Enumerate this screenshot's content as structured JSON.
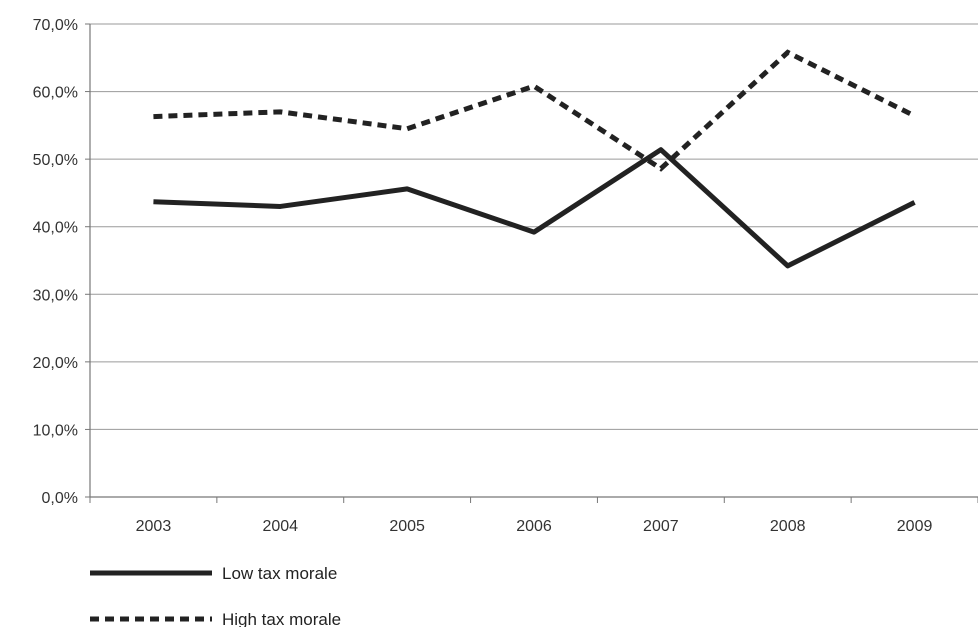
{
  "chart_data": {
    "type": "line",
    "title": "",
    "xlabel": "",
    "ylabel": "",
    "categories": [
      "2003",
      "2004",
      "2005",
      "2006",
      "2007",
      "2008",
      "2009"
    ],
    "y_ticks": [
      "0,0%",
      "10,0%",
      "20,0%",
      "30,0%",
      "40,0%",
      "50,0%",
      "60,0%",
      "70,0%"
    ],
    "ylim": [
      0,
      70
    ],
    "grid": true,
    "legend_position": "bottom-left",
    "series": [
      {
        "name": "Low tax morale",
        "values": [
          43.7,
          43.0,
          45.6,
          39.2,
          51.4,
          34.2,
          43.6
        ],
        "style": "solid",
        "color": "#222222"
      },
      {
        "name": "High tax morale",
        "values": [
          56.3,
          57.0,
          54.5,
          60.8,
          48.6,
          65.8,
          56.4
        ],
        "style": "dotted",
        "color": "#222222"
      }
    ]
  }
}
